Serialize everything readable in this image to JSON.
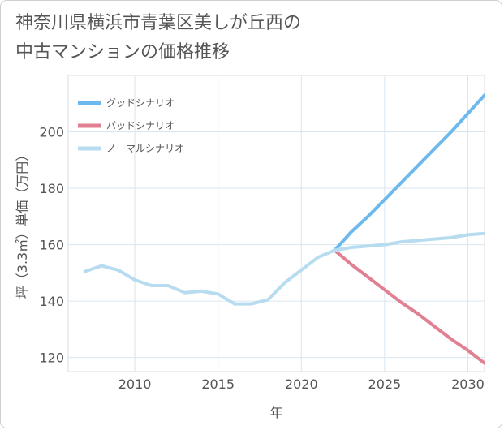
{
  "title_lines": [
    "神奈川県横浜市青葉区美しが丘西の",
    "中古マンションの価格推移"
  ],
  "chart_data": {
    "type": "line",
    "xlabel": "年",
    "ylabel": "坪（3.3㎡）単価（万円）",
    "xlim": [
      2006,
      2031
    ],
    "ylim": [
      115,
      220
    ],
    "xticks": [
      2010,
      2015,
      2020,
      2025,
      2030
    ],
    "yticks": [
      120,
      140,
      160,
      180,
      200
    ],
    "grid": true,
    "legend_position": "top-left",
    "series": [
      {
        "name": "グッドシナリオ",
        "color": "#6db8ec",
        "x": [
          2022,
          2023,
          2024,
          2025,
          2026,
          2027,
          2028,
          2029,
          2030,
          2031
        ],
        "y": [
          158,
          164.5,
          170.0,
          176.0,
          182.0,
          188.0,
          194.0,
          200.0,
          206.5,
          213.0
        ]
      },
      {
        "name": "バッドシナリオ",
        "color": "#e08090",
        "x": [
          2022,
          2023,
          2024,
          2025,
          2026,
          2027,
          2028,
          2029,
          2030,
          2031
        ],
        "y": [
          158,
          153.0,
          148.5,
          144.0,
          139.5,
          135.5,
          131.0,
          126.5,
          122.5,
          118.0
        ]
      },
      {
        "name": "ノーマルシナリオ",
        "color": "#b8dcef",
        "x": [
          2007,
          2008,
          2009,
          2010,
          2011,
          2012,
          2013,
          2014,
          2015,
          2016,
          2017,
          2018,
          2019,
          2020,
          2021,
          2022,
          2023,
          2024,
          2025,
          2026,
          2027,
          2028,
          2029,
          2030,
          2031
        ],
        "y": [
          150.5,
          152.5,
          151.0,
          147.5,
          145.5,
          145.5,
          143.0,
          143.5,
          142.5,
          139.0,
          139.0,
          140.5,
          146.5,
          151.0,
          155.5,
          158.0,
          159.0,
          159.5,
          160.0,
          161.0,
          161.5,
          162.0,
          162.5,
          163.5,
          164.0
        ]
      }
    ]
  }
}
